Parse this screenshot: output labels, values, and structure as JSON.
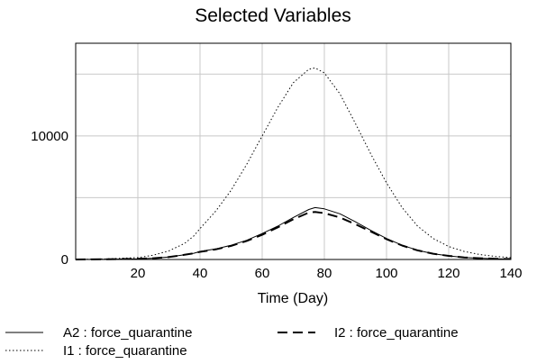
{
  "chart_data": {
    "type": "line",
    "title": "Selected Variables",
    "xlabel": "Time (Day)",
    "ylabel": "",
    "xlim": [
      0,
      140
    ],
    "ylim": [
      0,
      17500
    ],
    "xticks": [
      "20",
      "40",
      "60",
      "80",
      "100",
      "120",
      "140"
    ],
    "yticks": [
      "0",
      "10000"
    ],
    "grid": true,
    "legend_position": "bottom",
    "series": [
      {
        "name": "A2 : force_quarantine",
        "style": "solid",
        "color": "#000000",
        "x": [
          0,
          10,
          20,
          25,
          30,
          35,
          38,
          40,
          45,
          50,
          55,
          60,
          65,
          70,
          75,
          77,
          80,
          85,
          90,
          95,
          100,
          105,
          110,
          115,
          120,
          125,
          130,
          135,
          140
        ],
        "y": [
          0,
          20,
          50,
          100,
          200,
          380,
          500,
          650,
          850,
          1150,
          1550,
          2100,
          2700,
          3400,
          4050,
          4200,
          4100,
          3700,
          3050,
          2350,
          1700,
          1150,
          750,
          470,
          290,
          170,
          100,
          60,
          35
        ]
      },
      {
        "name": "I1 : force_quarantine",
        "style": "dotted",
        "color": "#000000",
        "x": [
          0,
          10,
          20,
          25,
          30,
          35,
          38,
          40,
          45,
          50,
          55,
          60,
          65,
          70,
          75,
          77,
          80,
          85,
          90,
          95,
          100,
          105,
          110,
          115,
          120,
          125,
          130,
          135,
          140
        ],
        "y": [
          0,
          50,
          150,
          350,
          700,
          1300,
          1900,
          2500,
          3900,
          5600,
          7700,
          10000,
          12300,
          14300,
          15400,
          15500,
          15100,
          13400,
          11000,
          8500,
          6200,
          4200,
          2700,
          1700,
          1050,
          650,
          400,
          250,
          150
        ]
      },
      {
        "name": "I2 : force_quarantine",
        "style": "dashed",
        "color": "#000000",
        "x": [
          0,
          10,
          20,
          25,
          30,
          35,
          38,
          40,
          45,
          50,
          55,
          60,
          65,
          70,
          75,
          77,
          80,
          85,
          90,
          95,
          100,
          105,
          110,
          115,
          120,
          125,
          130,
          135,
          140
        ],
        "y": [
          0,
          20,
          50,
          100,
          200,
          380,
          500,
          620,
          820,
          1100,
          1500,
          2000,
          2600,
          3250,
          3800,
          3850,
          3750,
          3400,
          2850,
          2250,
          1650,
          1130,
          740,
          470,
          290,
          170,
          100,
          60,
          35
        ]
      }
    ]
  }
}
